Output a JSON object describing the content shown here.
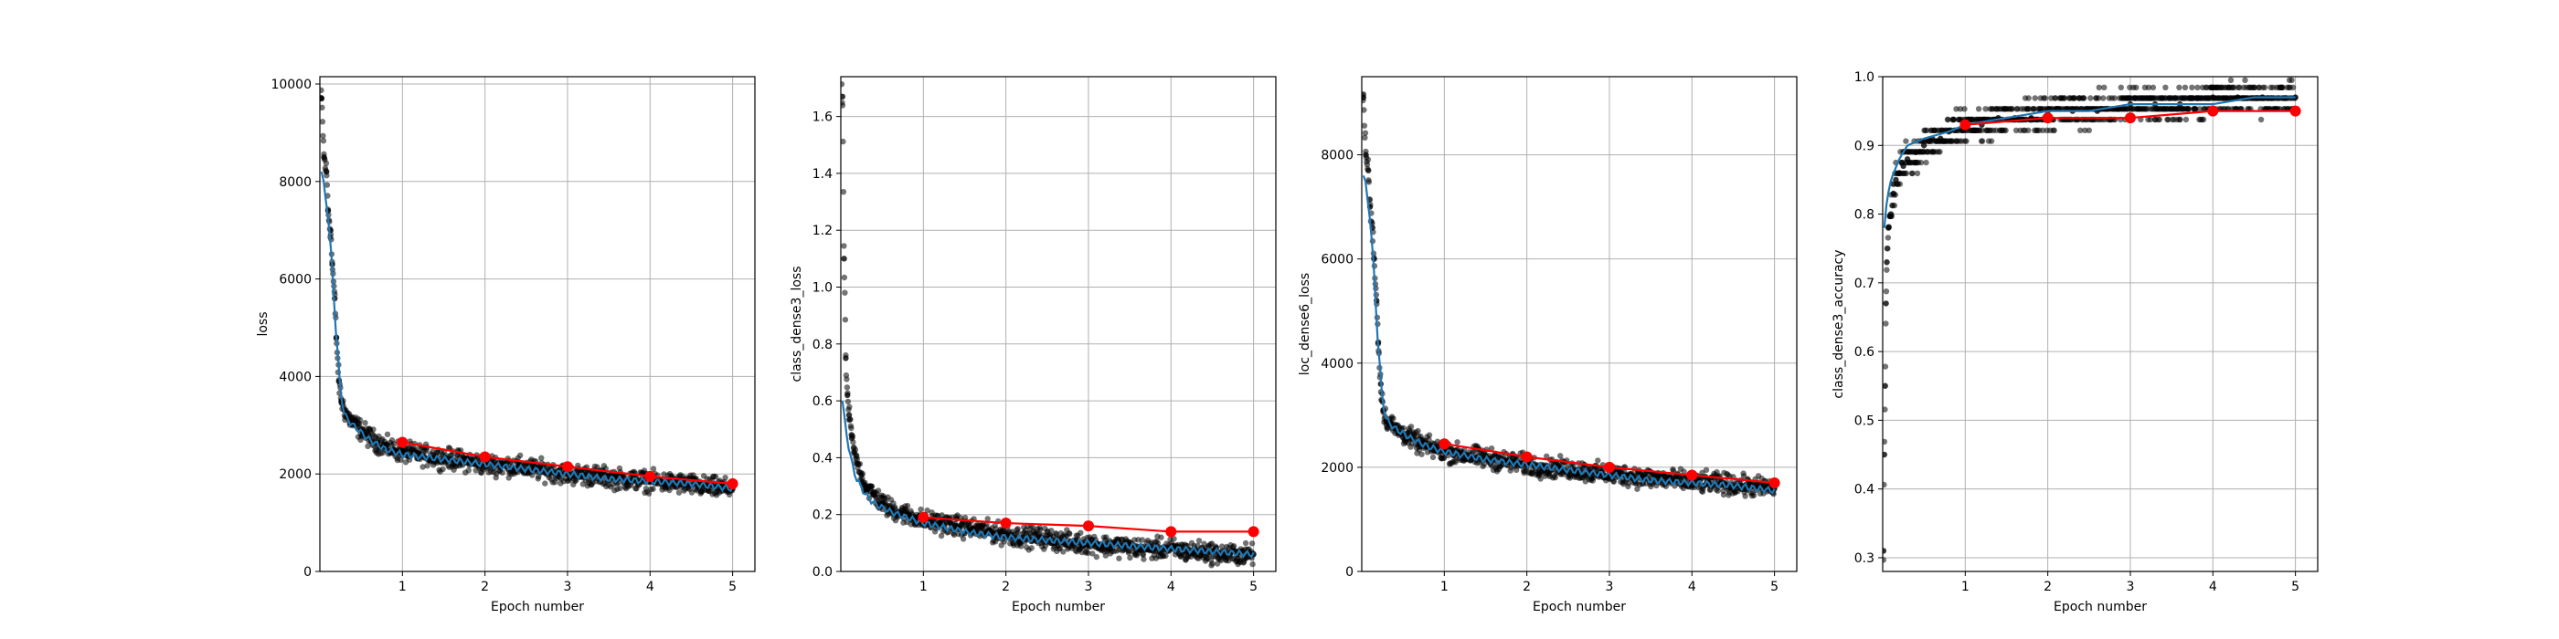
{
  "chart_data": [
    {
      "type": "scatter",
      "xlabel": "Epoch number",
      "ylabel": "loss",
      "xlim": [
        0,
        5.27
      ],
      "ylim": [
        0,
        10150
      ],
      "grid": true,
      "xticks": [
        1,
        2,
        3,
        4,
        5
      ],
      "yticks": [
        0,
        2000,
        4000,
        6000,
        8000,
        10000
      ],
      "ytick_labels": [
        "0",
        "2000",
        "4000",
        "6000",
        "8000",
        "10000"
      ],
      "series": [
        {
          "kind": "scatter",
          "color": "#000000",
          "x": [
            0.02,
            0.05,
            0.08,
            0.1,
            0.13,
            0.15,
            0.18,
            0.2,
            0.23,
            0.26,
            0.3,
            0.35,
            0.4,
            0.5,
            0.6,
            0.7,
            0.8,
            0.9,
            1.0,
            1.2,
            1.4,
            1.6,
            1.8,
            2.0,
            2.2,
            2.4,
            2.6,
            2.8,
            3.0,
            3.2,
            3.4,
            3.6,
            3.8,
            4.0,
            4.2,
            4.4,
            4.6,
            4.8,
            5.0
          ],
          "y": [
            9700,
            8500,
            8200,
            7400,
            7000,
            6300,
            5600,
            4800,
            3900,
            3500,
            3300,
            3150,
            3050,
            2900,
            2750,
            2650,
            2550,
            2500,
            2450,
            2400,
            2350,
            2300,
            2250,
            2200,
            2180,
            2150,
            2100,
            2050,
            2000,
            1980,
            1950,
            1900,
            1880,
            1850,
            1820,
            1800,
            1750,
            1720,
            1700
          ]
        },
        {
          "kind": "line",
          "name": "",
          "color": "#1f77b4",
          "x": [
            0.02,
            0.05,
            0.1,
            0.15,
            0.2,
            0.25,
            0.3,
            0.4,
            0.6,
            0.8,
            1.0,
            1.5,
            2.0,
            2.5,
            3.0,
            3.5,
            4.0,
            4.5,
            5.0
          ],
          "y": [
            8200,
            7900,
            7300,
            6200,
            4800,
            3700,
            3200,
            3000,
            2700,
            2500,
            2400,
            2300,
            2200,
            2100,
            2000,
            1900,
            1850,
            1800,
            1700
          ]
        },
        {
          "kind": "line_markers",
          "color": "#ff0000",
          "x": [
            1,
            2,
            3,
            4,
            5
          ],
          "y": [
            2650,
            2350,
            2150,
            1950,
            1800
          ]
        }
      ]
    },
    {
      "type": "scatter",
      "xlabel": "Epoch number",
      "ylabel": "class_dense3_loss",
      "xlim": [
        0,
        5.27
      ],
      "ylim": [
        0,
        1.74
      ],
      "grid": true,
      "xticks": [
        1,
        2,
        3,
        4,
        5
      ],
      "yticks": [
        0,
        0.2,
        0.4,
        0.6,
        0.8,
        1.0,
        1.2,
        1.4,
        1.6
      ],
      "ytick_labels": [
        "0.0",
        "0.2",
        "0.4",
        "0.6",
        "0.8",
        "1.0",
        "1.2",
        "1.4",
        "1.6"
      ],
      "series": [
        {
          "kind": "scatter",
          "color": "#000000",
          "x": [
            0.02,
            0.04,
            0.06,
            0.08,
            0.1,
            0.13,
            0.16,
            0.2,
            0.25,
            0.3,
            0.4,
            0.5,
            0.6,
            0.7,
            0.8,
            0.9,
            1.0,
            1.2,
            1.4,
            1.6,
            1.8,
            2.0,
            2.2,
            2.4,
            2.6,
            2.8,
            3.0,
            3.2,
            3.4,
            3.6,
            3.8,
            4.0,
            4.2,
            4.4,
            4.6,
            4.8,
            5.0
          ],
          "y": [
            1.67,
            1.1,
            0.75,
            0.62,
            0.55,
            0.48,
            0.42,
            0.38,
            0.34,
            0.3,
            0.27,
            0.24,
            0.22,
            0.21,
            0.2,
            0.19,
            0.18,
            0.17,
            0.16,
            0.15,
            0.14,
            0.13,
            0.12,
            0.12,
            0.11,
            0.1,
            0.1,
            0.09,
            0.09,
            0.08,
            0.08,
            0.08,
            0.07,
            0.07,
            0.06,
            0.06,
            0.06
          ]
        },
        {
          "kind": "line",
          "color": "#1f77b4",
          "x": [
            0.02,
            0.05,
            0.1,
            0.15,
            0.2,
            0.3,
            0.4,
            0.6,
            0.8,
            1.0,
            1.5,
            2.0,
            2.5,
            3.0,
            3.5,
            4.0,
            4.5,
            5.0
          ],
          "y": [
            0.6,
            0.52,
            0.43,
            0.36,
            0.32,
            0.27,
            0.24,
            0.21,
            0.19,
            0.17,
            0.14,
            0.12,
            0.11,
            0.1,
            0.09,
            0.08,
            0.07,
            0.06
          ]
        },
        {
          "kind": "line_markers",
          "color": "#ff0000",
          "x": [
            1,
            2,
            3,
            4,
            5
          ],
          "y": [
            0.19,
            0.17,
            0.16,
            0.14,
            0.14
          ]
        }
      ]
    },
    {
      "type": "scatter",
      "xlabel": "Epoch number",
      "ylabel": "loc_dense6_loss",
      "xlim": [
        0,
        5.27
      ],
      "ylim": [
        0,
        9500
      ],
      "grid": true,
      "xticks": [
        1,
        2,
        3,
        4,
        5
      ],
      "yticks": [
        0,
        2000,
        4000,
        6000,
        8000
      ],
      "ytick_labels": [
        "0",
        "2000",
        "4000",
        "6000",
        "8000"
      ],
      "series": [
        {
          "kind": "scatter",
          "color": "#000000",
          "x": [
            0.02,
            0.05,
            0.08,
            0.1,
            0.13,
            0.15,
            0.18,
            0.2,
            0.23,
            0.26,
            0.3,
            0.35,
            0.4,
            0.5,
            0.6,
            0.7,
            0.8,
            0.9,
            1.0,
            1.2,
            1.4,
            1.6,
            1.8,
            2.0,
            2.2,
            2.4,
            2.6,
            2.8,
            3.0,
            3.2,
            3.4,
            3.6,
            3.8,
            4.0,
            4.2,
            4.4,
            4.6,
            4.8,
            5.0
          ],
          "y": [
            9100,
            8000,
            7700,
            7000,
            6600,
            6000,
            5200,
            4400,
            3600,
            3100,
            2900,
            2850,
            2750,
            2650,
            2550,
            2450,
            2400,
            2350,
            2300,
            2250,
            2200,
            2150,
            2100,
            2050,
            2000,
            1980,
            1950,
            1900,
            1870,
            1850,
            1800,
            1780,
            1750,
            1720,
            1700,
            1680,
            1650,
            1620,
            1600
          ]
        },
        {
          "kind": "line",
          "color": "#1f77b4",
          "x": [
            0.02,
            0.05,
            0.1,
            0.15,
            0.2,
            0.25,
            0.3,
            0.4,
            0.6,
            0.8,
            1.0,
            1.5,
            2.0,
            2.5,
            3.0,
            3.5,
            4.0,
            4.5,
            5.0
          ],
          "y": [
            7600,
            7400,
            6800,
            5700,
            4300,
            3300,
            2900,
            2750,
            2550,
            2400,
            2300,
            2150,
            2050,
            1950,
            1850,
            1750,
            1700,
            1650,
            1550
          ]
        },
        {
          "kind": "line_markers",
          "color": "#ff0000",
          "x": [
            1,
            2,
            3,
            4,
            5
          ],
          "y": [
            2450,
            2200,
            2000,
            1850,
            1700
          ]
        }
      ]
    },
    {
      "type": "scatter",
      "xlabel": "Epoch number",
      "ylabel": "class_dense3_accuracy",
      "xlim": [
        0,
        5.27
      ],
      "ylim": [
        0.28,
        1.0
      ],
      "grid": true,
      "xticks": [
        1,
        2,
        3,
        4,
        5
      ],
      "yticks": [
        0.3,
        0.4,
        0.5,
        0.6,
        0.7,
        0.8,
        0.9,
        1.0
      ],
      "ytick_labels": [
        "0.3",
        "0.4",
        "0.5",
        "0.6",
        "0.7",
        "0.8",
        "0.9",
        "1.0"
      ],
      "series": [
        {
          "kind": "scatter",
          "color": "#000000",
          "x": [
            0.01,
            0.02,
            0.03,
            0.04,
            0.05,
            0.07,
            0.1,
            0.13,
            0.16,
            0.2,
            0.25,
            0.3,
            0.4,
            0.5,
            0.6,
            0.7,
            0.8,
            1.0,
            1.2,
            1.4,
            1.6,
            1.8,
            2.0,
            2.3,
            2.6,
            3.0,
            3.3,
            3.6,
            4.0,
            4.3,
            4.6,
            5.0
          ],
          "y": [
            0.31,
            0.45,
            0.55,
            0.67,
            0.73,
            0.78,
            0.8,
            0.83,
            0.85,
            0.86,
            0.87,
            0.88,
            0.89,
            0.9,
            0.91,
            0.91,
            0.92,
            0.93,
            0.93,
            0.94,
            0.94,
            0.94,
            0.95,
            0.95,
            0.95,
            0.96,
            0.96,
            0.96,
            0.97,
            0.97,
            0.97,
            0.97
          ]
        },
        {
          "kind": "line",
          "color": "#1f77b4",
          "x": [
            0.02,
            0.05,
            0.1,
            0.2,
            0.3,
            0.5,
            0.8,
            1.0,
            1.5,
            2.0,
            2.5,
            3.0,
            3.5,
            4.0,
            4.5,
            5.0
          ],
          "y": [
            0.78,
            0.82,
            0.85,
            0.88,
            0.9,
            0.91,
            0.92,
            0.93,
            0.94,
            0.95,
            0.95,
            0.96,
            0.96,
            0.96,
            0.97,
            0.97
          ]
        },
        {
          "kind": "line_markers",
          "color": "#ff0000",
          "x": [
            1,
            2,
            3,
            4,
            5
          ],
          "y": [
            0.93,
            0.94,
            0.94,
            0.95,
            0.95
          ]
        }
      ]
    }
  ]
}
